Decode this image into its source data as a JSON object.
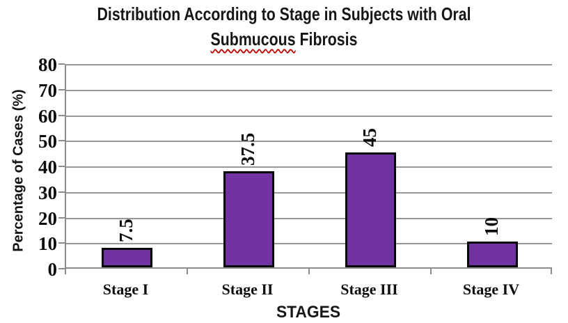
{
  "title": {
    "line1": "Distribution According to Stage in Subjects with Oral",
    "line2_misspelled_word": "Submucous",
    "line2_rest": "Fibrosis"
  },
  "chart_data": {
    "type": "bar",
    "title": "Distribution According to Stage in Subjects with Oral Submucous Fibrosis",
    "categories": [
      "Stage I",
      "Stage II",
      "Stage III",
      "Stage IV"
    ],
    "values": [
      7.5,
      37.5,
      45,
      10
    ],
    "value_labels": [
      "7.5",
      "37.5",
      "45",
      "10"
    ],
    "xlabel": "STAGES",
    "ylabel": "Percentage of Cases (%)",
    "ylim": [
      0,
      80
    ],
    "ytick_step": 10,
    "grid": true,
    "legend": false,
    "data_label_rotation_deg": -90,
    "colors": {
      "bar_fill": "#7132a2",
      "bar_border": "#050505",
      "gridline": "#989898",
      "axis": "#8d8d8d",
      "text": "#0d0d0d",
      "spellcheck_underline": "#c00000"
    }
  }
}
